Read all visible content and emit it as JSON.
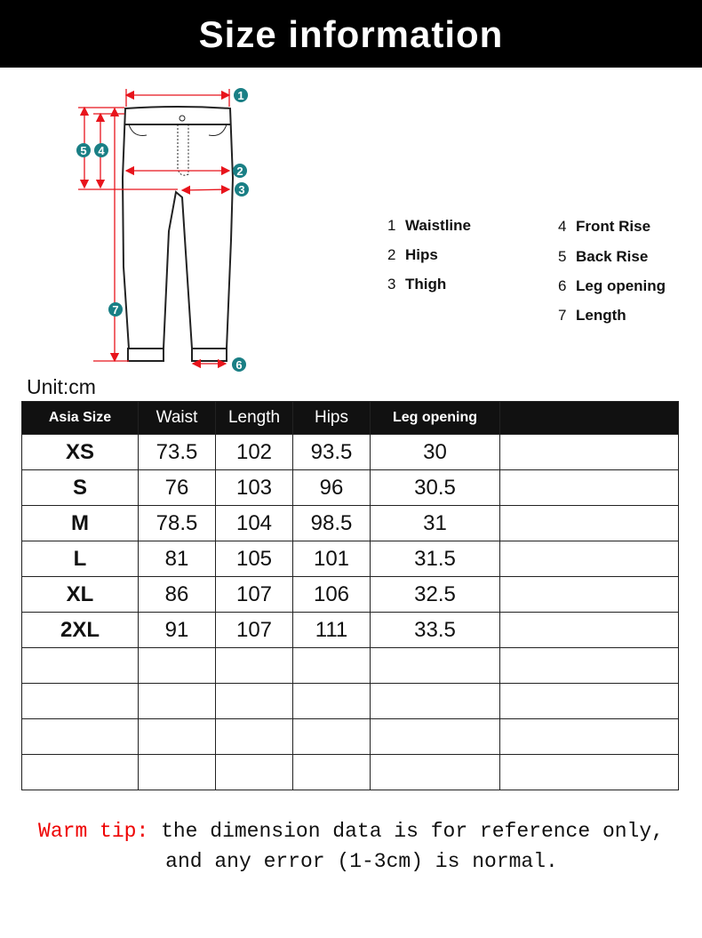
{
  "banner": {
    "title": "Size information"
  },
  "legend": [
    {
      "num": "1",
      "label": "Waistline"
    },
    {
      "num": "2",
      "label": "Hips"
    },
    {
      "num": "3",
      "label": "Thigh"
    },
    {
      "num": "4",
      "label": "Front Rise"
    },
    {
      "num": "5",
      "label": "Back Rise"
    },
    {
      "num": "6",
      "label": "Leg opening"
    },
    {
      "num": "7",
      "label": "Length"
    }
  ],
  "markers": [
    "1",
    "2",
    "3",
    "4",
    "5",
    "6",
    "7"
  ],
  "colors": {
    "arrow": "#e8141c",
    "marker": "#1a7f85",
    "header_bg": "#111111",
    "tip_red": "#ee0000"
  },
  "unit": "Unit:cm",
  "table": {
    "headers": [
      "Asia Size",
      "Waist",
      "Length",
      "Hips",
      "Leg opening",
      ""
    ],
    "rows": [
      [
        "XS",
        "73.5",
        "102",
        "93.5",
        "30",
        ""
      ],
      [
        "S",
        "76",
        "103",
        "96",
        "30.5",
        ""
      ],
      [
        "M",
        "78.5",
        "104",
        "98.5",
        "31",
        ""
      ],
      [
        "L",
        "81",
        "105",
        "101",
        "31.5",
        ""
      ],
      [
        "XL",
        "86",
        "107",
        "106",
        "32.5",
        ""
      ],
      [
        "2XL",
        "91",
        "107",
        "111",
        "33.5",
        ""
      ],
      [
        "",
        "",
        "",
        "",
        "",
        ""
      ],
      [
        "",
        "",
        "",
        "",
        "",
        ""
      ],
      [
        "",
        "",
        "",
        "",
        "",
        ""
      ],
      [
        "",
        "",
        "",
        "",
        "",
        ""
      ]
    ]
  },
  "tip": {
    "label": "Warm tip:",
    "line1": " the dimension data is for reference only,",
    "line2": "and any error (1-3cm) is normal."
  }
}
